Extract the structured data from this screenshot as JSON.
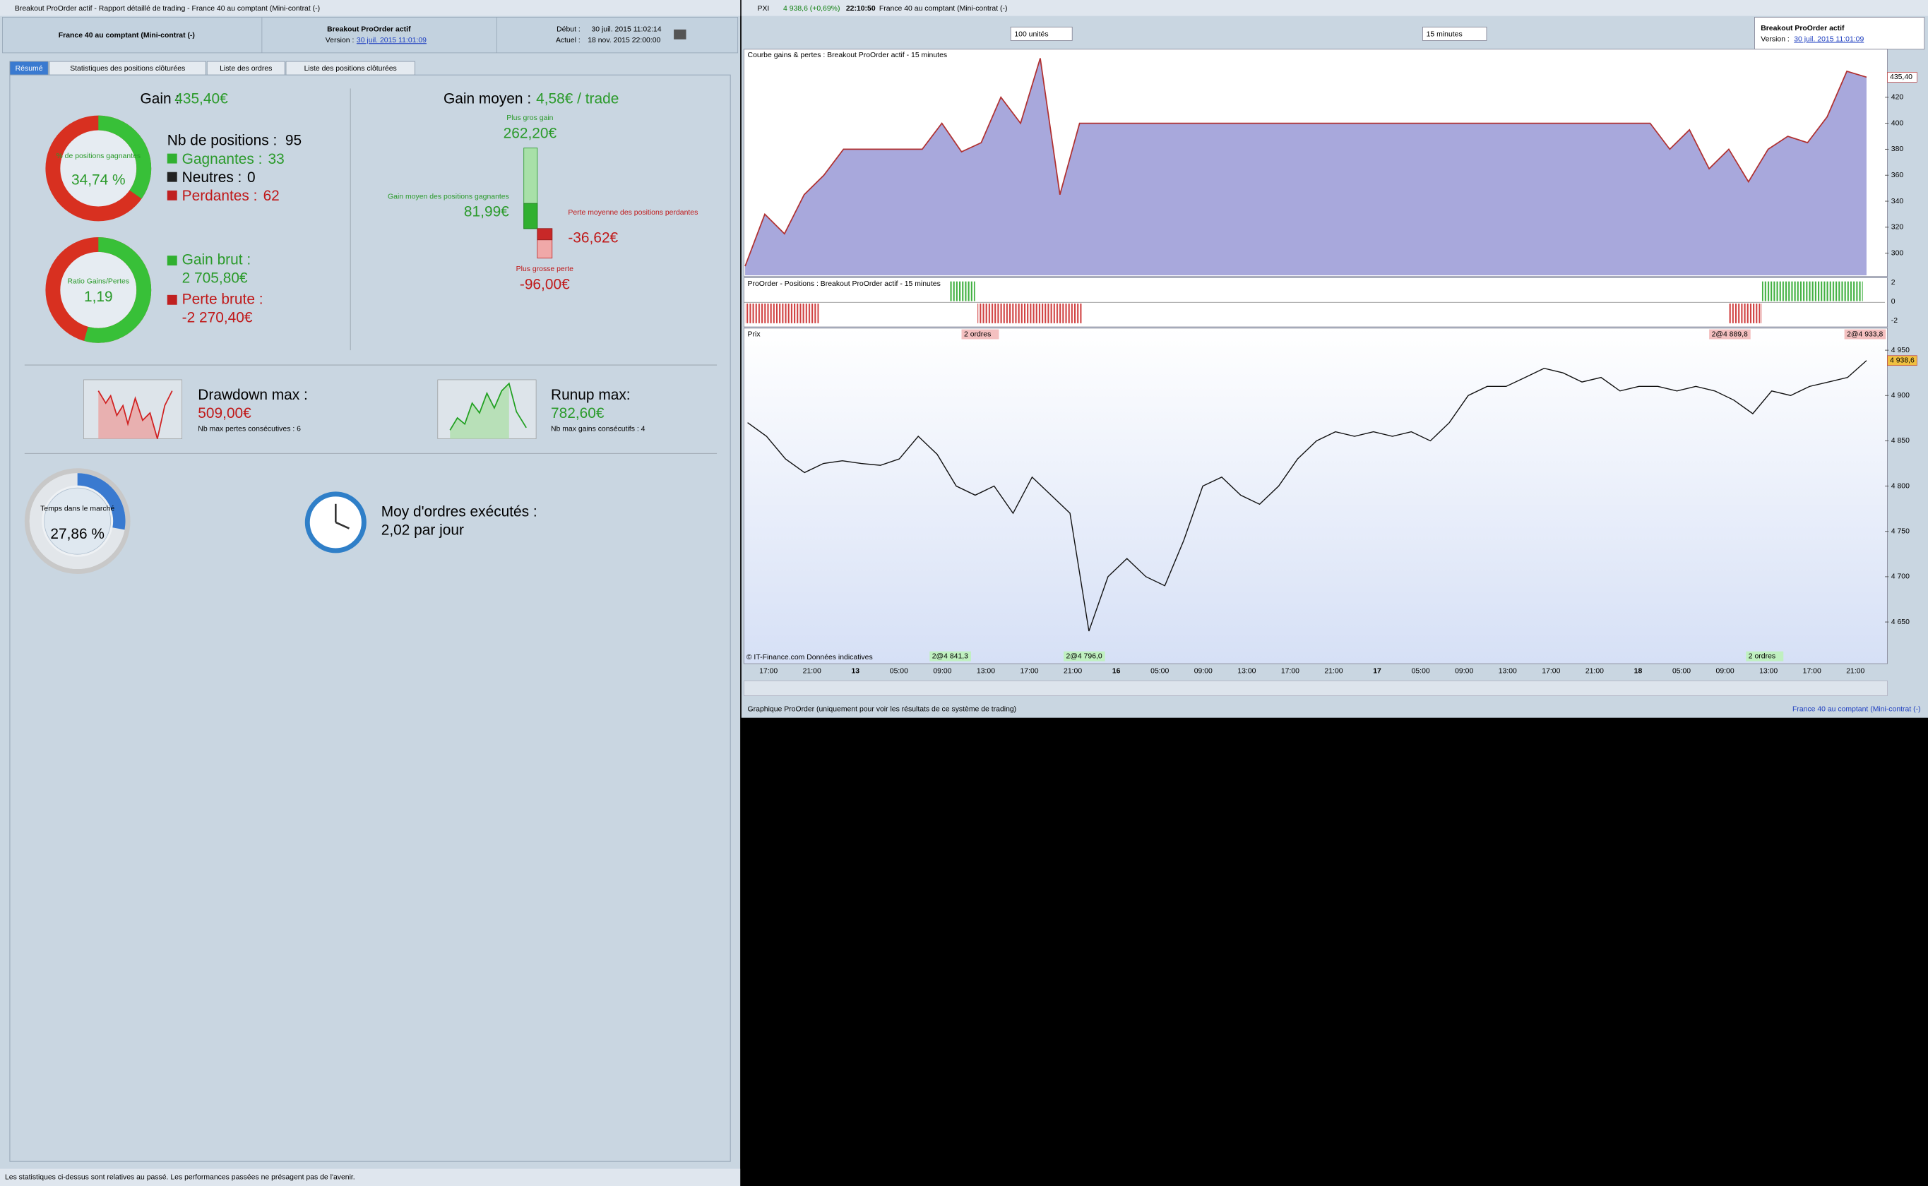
{
  "left_window": {
    "title": "Breakout ProOrder actif - Rapport détaillé de trading - France 40 au comptant (Mini-contrat  (-)",
    "header": {
      "instrument": "France 40 au comptant (Mini-contrat  (-)",
      "system": "Breakout ProOrder actif",
      "version_label": "Version :",
      "version": "30 juil. 2015 11:01:09",
      "start_label": "Début :",
      "start": "30 juil. 2015 11:02:14",
      "current_label": "Actuel :",
      "current": "18 nov. 2015 22:00:00"
    },
    "tabs": [
      "Résumé",
      "Statistiques des positions clôturées",
      "Liste des ordres",
      "Liste des positions clôturées"
    ],
    "summary": {
      "gain_label": "Gain :",
      "gain": "435,40€",
      "win_title": "% de positions gagnantes",
      "win_pct": {
        "value": 34.74,
        "label": "34,74 %"
      },
      "positions_label": "Nb de positions :",
      "positions": 95,
      "winners_label": "Gagnantes :",
      "winners": 33,
      "neutral_label": "Neutres :",
      "neutral": 0,
      "losers_label": "Perdantes :",
      "losers": 62,
      "ratio_title": "Ratio Gains/Pertes",
      "ratio": {
        "value": 1.19,
        "label": "1,19"
      },
      "gross_gain_label": "Gain brut :",
      "gross_gain": "2 705,80€",
      "gross_loss_label": "Perte brute :",
      "gross_loss": "-2 270,40€",
      "avg_gain_label": "Gain moyen :",
      "avg_gain": "4,58€ / trade",
      "best_label": "Plus gros gain",
      "best": {
        "value": 262.2,
        "label": "262,20€"
      },
      "avg_win_label": "Gain moyen des positions gagnantes",
      "avg_win": {
        "value": 81.99,
        "label": "81,99€"
      },
      "avg_loss_label": "Perte moyenne des positions perdantes",
      "avg_loss": {
        "value": -36.62,
        "label": "-36,62€"
      },
      "worst_label": "Plus grosse perte",
      "worst": {
        "value": -96,
        "label": "-96,00€"
      },
      "drawdown_label": "Drawdown max :",
      "drawdown": "509,00€",
      "drawdown_note": "Nb max pertes consécutives : 6",
      "runup_label": "Runup max:",
      "runup": "782,60€",
      "runup_note": "Nb max gains consécutifs : 4",
      "market_title": "Temps dans le marché",
      "market_time": {
        "value": 27.86,
        "label": "27,86 %"
      },
      "orders_label": "Moy d'ordres exécutés :",
      "orders": "2,02 par jour"
    },
    "footer": "Les statistiques ci-dessus sont relatives au passé. Les performances passées ne présagent pas de l'avenir."
  },
  "right_window": {
    "ticker": "PXI",
    "quote": "4 938,6 (+0,69%)",
    "clock": "22:10:50",
    "title": "France 40 au comptant (Mini-contrat  (-)",
    "size": "100 unités",
    "period": "15 minutes",
    "system": "Breakout ProOrder actif",
    "version_label": "Version :",
    "version": "30 juil. 2015 11:01:09",
    "equity": {
      "type": "area",
      "title": "Courbe gains & pertes : Breakout ProOrder actif - 15 minutes",
      "color": "#a8a8dc",
      "line_color": "#b03030",
      "values": [
        290,
        330,
        315,
        345,
        360,
        380,
        380,
        380,
        380,
        380,
        400,
        378,
        385,
        420,
        400,
        450,
        345,
        400,
        400,
        400,
        400,
        400,
        400,
        400,
        400,
        400,
        400,
        400,
        400,
        400,
        400,
        400,
        400,
        400,
        400,
        400,
        400,
        400,
        400,
        400,
        400,
        400,
        400,
        400,
        400,
        400,
        400,
        380,
        395,
        365,
        380,
        355,
        380,
        390,
        385,
        405,
        440,
        435.4
      ],
      "ylim": [
        283,
        457
      ],
      "yticks": [
        300,
        320,
        340,
        360,
        380,
        400,
        420
      ],
      "last_label": "435,40"
    },
    "positions": {
      "title": "ProOrder - Positions : Breakout ProOrder actif - 15 minutes",
      "yticks": [
        2,
        0,
        -2
      ]
    },
    "price": {
      "type": "line",
      "title": "Prix",
      "color": "#111111",
      "values": [
        4870,
        4855,
        4830,
        4815,
        4825,
        4828,
        4825,
        4823,
        4830,
        4855,
        4835,
        4800,
        4790,
        4800,
        4770,
        4810,
        4790,
        4770,
        4640,
        4700,
        4720,
        4700,
        4690,
        4740,
        4800,
        4810,
        4790,
        4780,
        4800,
        4830,
        4850,
        4860,
        4855,
        4860,
        4855,
        4860,
        4850,
        4870,
        4900,
        4910,
        4910,
        4920,
        4930,
        4925,
        4915,
        4920,
        4905,
        4910,
        4910,
        4905,
        4910,
        4905,
        4895,
        4880,
        4905,
        4900,
        4910,
        4915,
        4920,
        4938.6
      ],
      "ylim": [
        4604,
        4973
      ],
      "yticks": [
        {
          "value": 4650,
          "label": "4 650"
        },
        {
          "value": 4700,
          "label": "4 700"
        },
        {
          "value": 4750,
          "label": "4 750"
        },
        {
          "value": 4800,
          "label": "4 800"
        },
        {
          "value": 4850,
          "label": "4 850"
        },
        {
          "value": 4900,
          "label": "4 900"
        },
        {
          "value": 4950,
          "label": "4 950"
        }
      ],
      "last_label": "4 938,6",
      "copyright": "© IT-Finance.com Données indicatives",
      "orders": [
        "2 ordres",
        "2@4 889,8",
        "2@4 933,8",
        "2@4 841,3",
        "2@4 796,0",
        "2 ordres"
      ],
      "time_labels": [
        "17:00",
        "21:00",
        "13",
        "05:00",
        "09:00",
        "13:00",
        "17:00",
        "21:00",
        "16",
        "05:00",
        "09:00",
        "13:00",
        "17:00",
        "21:00",
        "17",
        "05:00",
        "09:00",
        "13:00",
        "17:00",
        "21:00",
        "18",
        "05:00",
        "09:00",
        "13:00",
        "17:00",
        "21:00"
      ]
    },
    "footer": "Graphique ProOrder (uniquement pour voir les résultats de ce système de trading)",
    "footer_right": "France 40 au comptant (Mini-contrat  (-)"
  }
}
